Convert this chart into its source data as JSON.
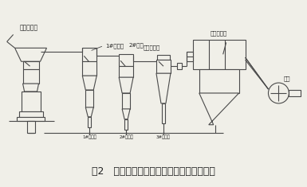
{
  "title": "图2   改进后摆式磨粉机磨粉系统工艺流程图",
  "title_fontsize": 9,
  "bg_color": "#f0efe8",
  "line_color": "#4a4a4a",
  "text_color": "#222222",
  "labels": {
    "mill": "摆式磨粉机",
    "sep1": "1#分级机",
    "sep2": "2#分级",
    "cyclone": "旋风除尘器",
    "bagfilter": "布袋除尘器",
    "fan": "风机",
    "outlet1": "1#出料口",
    "outlet2": "2#出料口",
    "outlet3": "3#出料口"
  },
  "lw": 0.8,
  "fig_width": 3.85,
  "fig_height": 2.35,
  "dpi": 100
}
